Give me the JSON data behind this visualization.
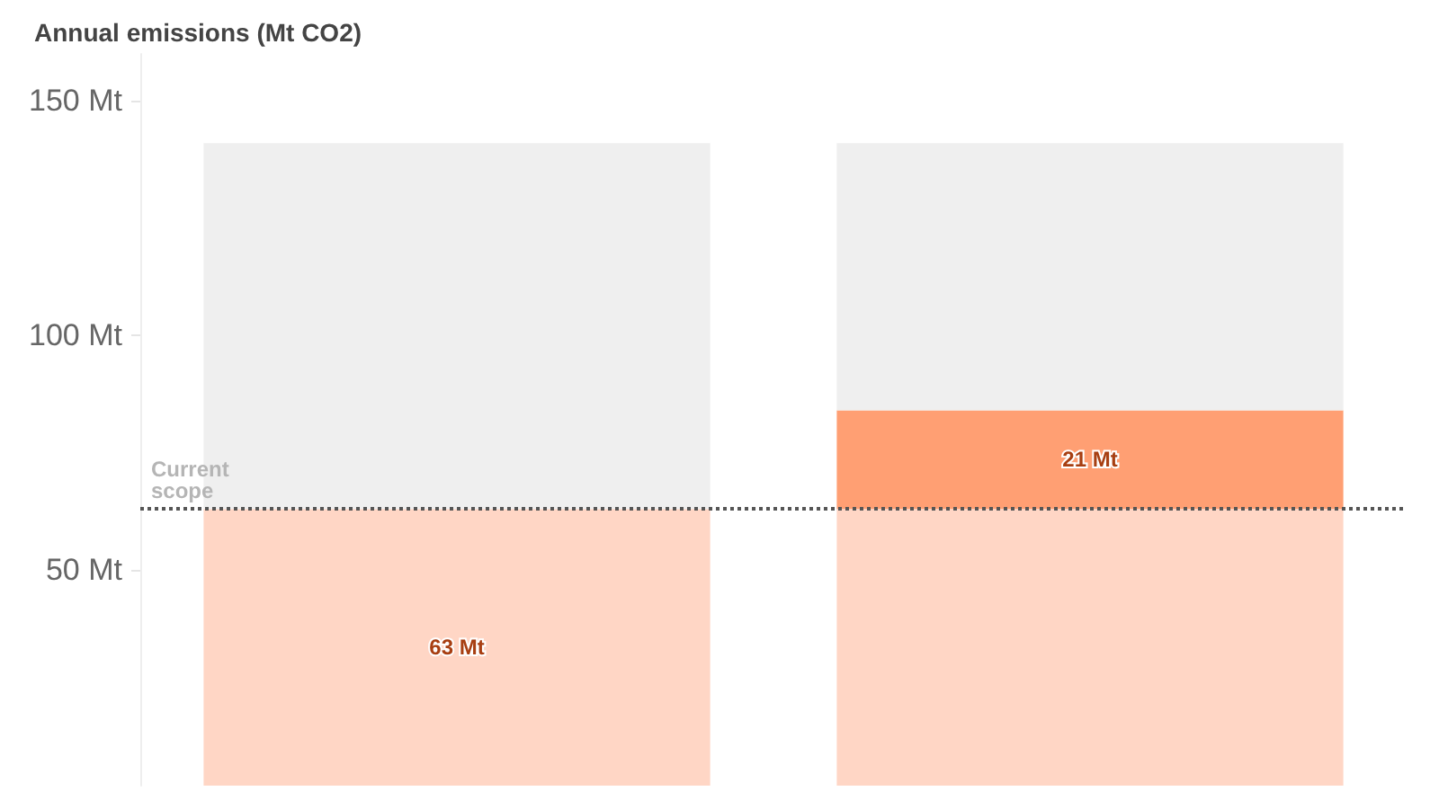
{
  "chart_data": {
    "type": "bar",
    "title": "Annual emissions (Mt CO2)",
    "categories": [
      null,
      null
    ],
    "stacked": true,
    "series": [
      {
        "color": "#ffd6c5",
        "values": [
          63,
          63
        ],
        "value_labels": [
          "63 Mt",
          null
        ]
      },
      {
        "color": "#ff9f73",
        "values": [
          null,
          21
        ],
        "value_labels": [
          null,
          "21 Mt"
        ]
      },
      {
        "color": "#efefef",
        "values": [
          78,
          57
        ]
      }
    ],
    "ylim": [
      4,
      160
    ],
    "yticks": [
      {
        "value": 50,
        "label": "50 Mt"
      },
      {
        "value": 100,
        "label": "100 Mt"
      },
      {
        "value": 150,
        "label": "150 Mt"
      }
    ],
    "grid": false,
    "ref_lines": [
      {
        "axis": "y",
        "value": 63,
        "label": "Current scope",
        "color": "#555555",
        "line_style": "dotted"
      }
    ]
  }
}
